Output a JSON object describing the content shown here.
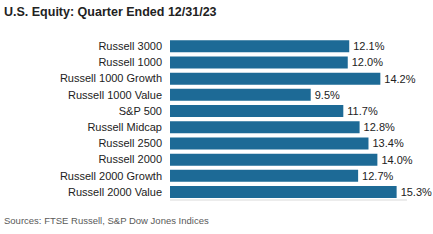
{
  "chart_data": {
    "type": "bar",
    "title": "U.S. Equity: Quarter Ended 12/31/23",
    "source": "Sources: FTSE Russell, S&P Dow Jones Indices",
    "orientation": "horizontal",
    "categories": [
      "Russell 3000",
      "Russell 1000",
      "Russell 1000 Growth",
      "Russell 1000 Value",
      "S&P 500",
      "Russell Midcap",
      "Russell 2500",
      "Russell 2000",
      "Russell 2000 Growth",
      "Russell 2000 Value"
    ],
    "values": [
      12.1,
      12.0,
      14.2,
      9.5,
      11.7,
      12.8,
      13.4,
      14.0,
      12.7,
      15.3
    ],
    "value_labels": [
      "12.1%",
      "12.0%",
      "14.2%",
      "9.5%",
      "11.7%",
      "12.8%",
      "13.4%",
      "14.0%",
      "12.7%",
      "15.3%"
    ],
    "data_labels": true,
    "tick_labels": "y",
    "xlim": [
      0,
      16
    ],
    "color": "#1d6a96",
    "grid": false
  }
}
